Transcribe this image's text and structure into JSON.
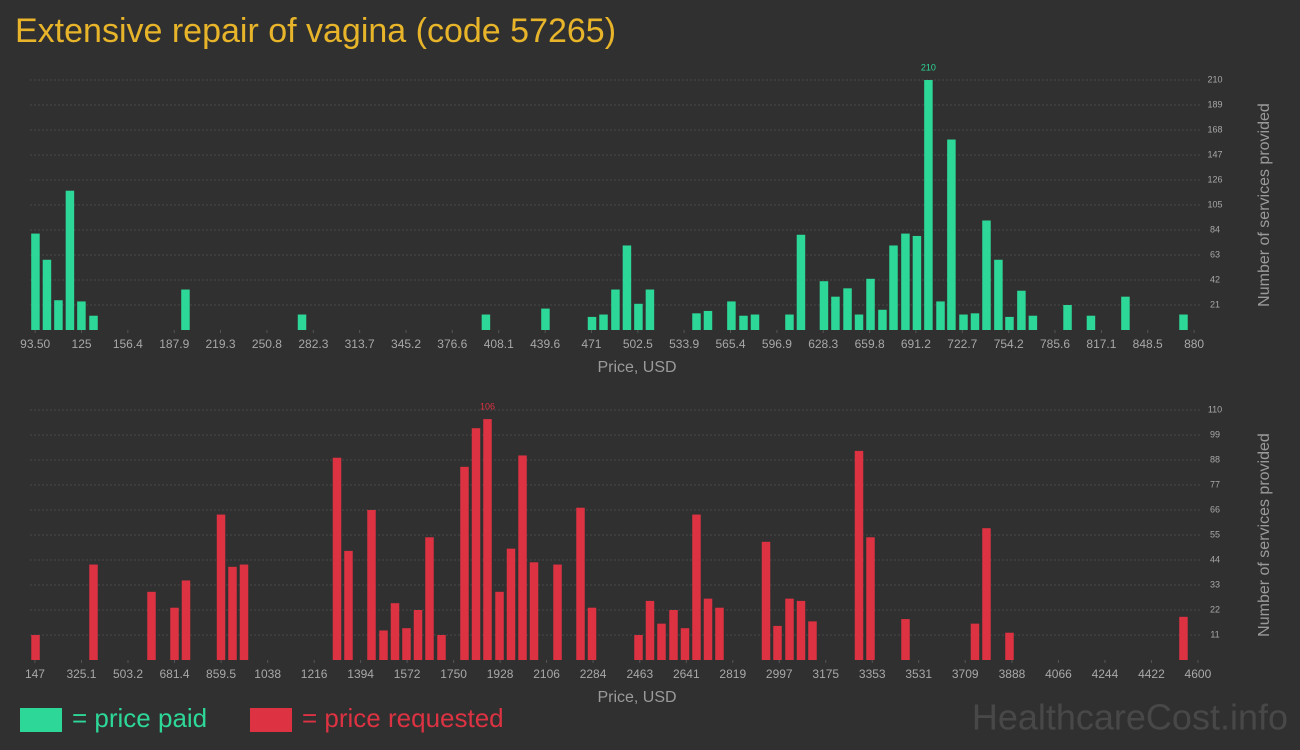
{
  "title": "Extensive repair of vagina (code 57265)",
  "watermark": "HealthcareCost.info",
  "chart_data": [
    {
      "type": "bar",
      "x_label": "Price, USD",
      "y_label": "Number of services provided",
      "grid": true,
      "x": [
        93.7,
        101.5,
        109.3,
        117.1,
        124.9,
        133.1,
        195.5,
        274.6,
        399.4,
        439.8,
        471.4,
        479.2,
        487.3,
        495.1,
        502.9,
        510.7,
        542.3,
        550.1,
        566,
        574.2,
        582,
        605.4,
        613.2,
        628.8,
        636.6,
        644.8,
        652.6,
        660.4,
        668.5,
        676,
        684.1,
        691.9,
        699.7,
        707.9,
        715.3,
        723.5,
        731.3,
        739.1,
        747.2,
        754.7,
        762.8,
        770.6,
        794.1,
        810,
        833.4,
        872.8
      ],
      "series": [
        {
          "name": "= price paid",
          "color": "#2dd797",
          "values": [
            81,
            59,
            25,
            117,
            24,
            12,
            34,
            13,
            13,
            18,
            11,
            13,
            34,
            71,
            22,
            34,
            14,
            16,
            24,
            12,
            13,
            13,
            80,
            41,
            28,
            35,
            13,
            43,
            17,
            71,
            81,
            79,
            210,
            24,
            160,
            13,
            14,
            92,
            59,
            11,
            33,
            12,
            21,
            12,
            28,
            13
          ]
        }
      ],
      "xlim": [
        90,
        884
      ],
      "xticks": [
        {
          "value": 93.5,
          "label": "93.50"
        },
        125,
        156.4,
        187.9,
        219.3,
        250.8,
        282.3,
        313.7,
        345.2,
        376.6,
        408.1,
        439.6,
        471,
        502.5,
        533.9,
        565.4,
        596.9,
        628.3,
        659.8,
        691.2,
        722.7,
        754.2,
        785.6,
        817.1,
        848.5,
        880
      ],
      "ylim": [
        0,
        210
      ],
      "yticks": [
        21,
        42,
        63,
        84,
        105,
        126,
        147,
        168,
        189,
        210
      ]
    },
    {
      "type": "bar",
      "x_label": "Price, USD",
      "y_label": "Number of services provided",
      "grid": true,
      "x": [
        149.1,
        371.1,
        593.2,
        681.3,
        725.3,
        859.4,
        903.4,
        947.4,
        1303.5,
        1347.5,
        1435.6,
        1481.6,
        1525.6,
        1569.6,
        1613.7,
        1657.7,
        1703.7,
        1791.7,
        1835.8,
        1879.8,
        1925.8,
        1969.8,
        2013.9,
        2057.9,
        2147.9,
        2235.9,
        2280,
        2458,
        2502,
        2546,
        2592,
        2636,
        2680,
        2724.1,
        2768.1,
        2946.2,
        2990.2,
        3036.2,
        3080.2,
        3124.2,
        3302.3,
        3346.3,
        3480.3,
        3746.4,
        3790.4,
        3878.5,
        4544.7
      ],
      "series": [
        {
          "name": "= price requested",
          "color": "#dc3242",
          "values": [
            11,
            42,
            30,
            23,
            35,
            64,
            41,
            42,
            89,
            48,
            66,
            13,
            25,
            14,
            22,
            54,
            11,
            85,
            102,
            106,
            30,
            49,
            90,
            43,
            42,
            67,
            23,
            11,
            26,
            16,
            22,
            14,
            64,
            27,
            23,
            52,
            15,
            27,
            26,
            17,
            92,
            54,
            18,
            16,
            58,
            12,
            19
          ]
        }
      ],
      "xlim": [
        128,
        4608
      ],
      "xticks": [
        147,
        325.1,
        503.2,
        681.4,
        859.5,
        1038,
        1216,
        1394,
        1572,
        1750,
        1928,
        2106,
        2284,
        2463,
        2641,
        2819,
        2997,
        3175,
        3353,
        3531,
        3709,
        3888,
        4066,
        4244,
        4422,
        4600
      ],
      "ylim": [
        0,
        110
      ],
      "yticks": [
        11,
        22,
        33,
        44,
        55,
        66,
        77,
        88,
        99,
        110
      ]
    }
  ]
}
